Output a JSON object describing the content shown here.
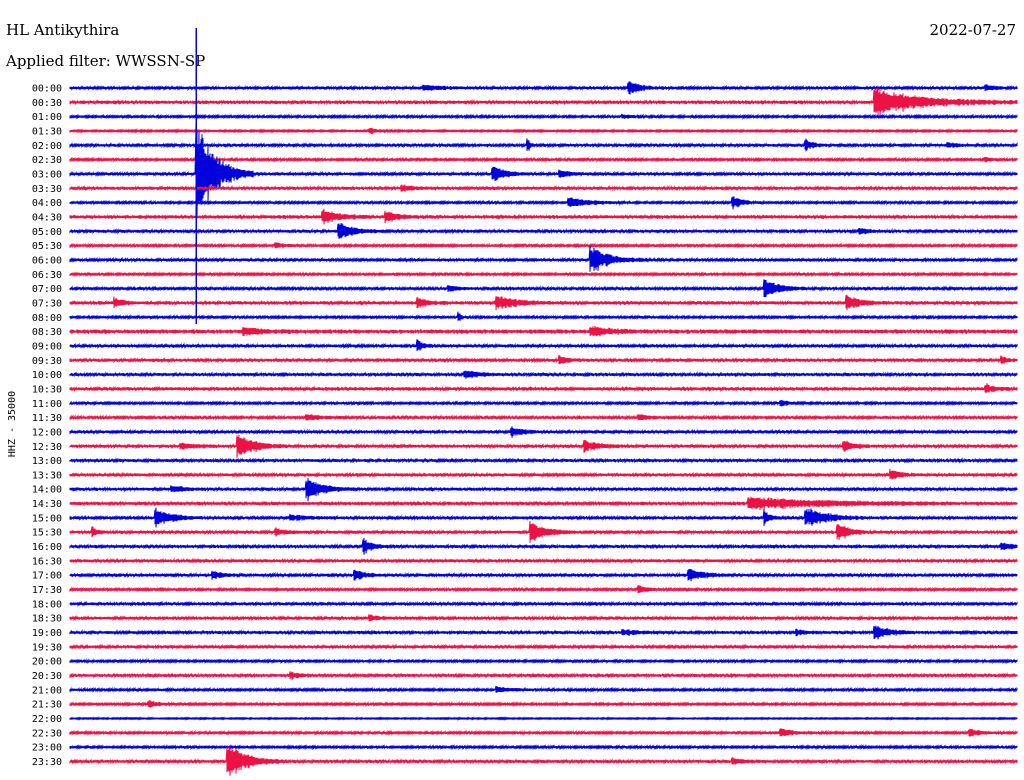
{
  "header": {
    "station": "HL Antikythira",
    "filter": "Applied filter: WWSSN-SP",
    "date": "2022-07-27"
  },
  "chart_data": {
    "type": "line",
    "title": "HL Antikythira",
    "subtitle": "Applied filter: WWSSN-SP",
    "ylabel": "HHZ - 35000",
    "xlabel": "",
    "rows": [
      "00:00",
      "00:30",
      "01:00",
      "01:30",
      "02:00",
      "02:30",
      "03:00",
      "03:30",
      "04:00",
      "04:30",
      "05:00",
      "05:30",
      "06:00",
      "06:30",
      "07:00",
      "07:30",
      "08:00",
      "08:30",
      "09:00",
      "09:30",
      "10:00",
      "10:30",
      "11:00",
      "11:30",
      "12:00",
      "12:30",
      "13:00",
      "13:30",
      "14:00",
      "14:30",
      "15:00",
      "15:30",
      "16:00",
      "16:30",
      "17:00",
      "17:30",
      "18:00",
      "18:30",
      "19:00",
      "19:30",
      "20:00",
      "20:30",
      "21:00",
      "21:30",
      "22:00",
      "22:30",
      "23:00",
      "23:30"
    ],
    "row_minutes": 30,
    "colors": [
      "#0000dd",
      "#ee1144"
    ],
    "quiet_noise": [
      1.2,
      1.5,
      1.0,
      0.8,
      1.2,
      1.0,
      1.2,
      1.3,
      1.0,
      1.5,
      1.3,
      1.0,
      1.2,
      1.0,
      1.2,
      1.5,
      1.0,
      1.8,
      1.3,
      1.3,
      1.3,
      1.5,
      1.0,
      1.2,
      1.3,
      1.3,
      1.3,
      1.3,
      1.3,
      1.5,
      1.3,
      1.3,
      1.3,
      1.3,
      1.3,
      1.0,
      1.3,
      1.3,
      1.3,
      1.3,
      1.0,
      1.3,
      1.0,
      1.0,
      0.6,
      1.0,
      1.0,
      1.3
    ],
    "events": [
      {
        "row": 0,
        "minute": 11.2,
        "amplitude": 3,
        "duration": 2.0
      },
      {
        "row": 0,
        "minute": 17.7,
        "amplitude": 7,
        "duration": 1.2
      },
      {
        "row": 0,
        "minute": 29.0,
        "amplitude": 3,
        "duration": 1.0
      },
      {
        "row": 1,
        "minute": 25.5,
        "amplitude": 14,
        "duration": 4.5
      },
      {
        "row": 2,
        "minute": 17.5,
        "amplitude": 2,
        "duration": 1.0
      },
      {
        "row": 3,
        "minute": 9.5,
        "amplitude": 3,
        "duration": 1.0
      },
      {
        "row": 4,
        "minute": 14.5,
        "amplitude": 6,
        "duration": 0.3
      },
      {
        "row": 4,
        "minute": 23.3,
        "amplitude": 6,
        "duration": 0.8
      },
      {
        "row": 4,
        "minute": 27.8,
        "amplitude": 3,
        "duration": 0.8
      },
      {
        "row": 5,
        "minute": 29.0,
        "amplitude": 3,
        "duration": 0.5
      },
      {
        "row": 6,
        "minute": 4.0,
        "amplitude": 55,
        "duration": 1.8
      },
      {
        "row": 6,
        "minute": 13.4,
        "amplitude": 8,
        "duration": 1.2
      },
      {
        "row": 6,
        "minute": 15.5,
        "amplitude": 4,
        "duration": 1.0
      },
      {
        "row": 7,
        "minute": 10.5,
        "amplitude": 3,
        "duration": 1.5
      },
      {
        "row": 8,
        "minute": 15.8,
        "amplitude": 5,
        "duration": 2.0
      },
      {
        "row": 8,
        "minute": 21.0,
        "amplitude": 6,
        "duration": 1.0
      },
      {
        "row": 9,
        "minute": 8.0,
        "amplitude": 8,
        "duration": 1.5
      },
      {
        "row": 9,
        "minute": 10.0,
        "amplitude": 5,
        "duration": 1.2
      },
      {
        "row": 10,
        "minute": 8.5,
        "amplitude": 9,
        "duration": 1.5
      },
      {
        "row": 10,
        "minute": 25.0,
        "amplitude": 3,
        "duration": 1.0
      },
      {
        "row": 11,
        "minute": 6.5,
        "amplitude": 3,
        "duration": 1.0
      },
      {
        "row": 12,
        "minute": 16.5,
        "amplitude": 14,
        "duration": 1.8
      },
      {
        "row": 14,
        "minute": 22.0,
        "amplitude": 9,
        "duration": 1.5
      },
      {
        "row": 14,
        "minute": 12.0,
        "amplitude": 3,
        "duration": 1.0
      },
      {
        "row": 15,
        "minute": 13.5,
        "amplitude": 7,
        "duration": 2.0
      },
      {
        "row": 15,
        "minute": 24.6,
        "amplitude": 8,
        "duration": 1.2
      },
      {
        "row": 15,
        "minute": 11.0,
        "amplitude": 5,
        "duration": 1.0
      },
      {
        "row": 15,
        "minute": 1.4,
        "amplitude": 5,
        "duration": 0.8
      },
      {
        "row": 16,
        "minute": 12.3,
        "amplitude": 5,
        "duration": 0.3
      },
      {
        "row": 17,
        "minute": 16.5,
        "amplitude": 5,
        "duration": 2.0
      },
      {
        "row": 17,
        "minute": 5.5,
        "amplitude": 4,
        "duration": 1.5
      },
      {
        "row": 18,
        "minute": 11.0,
        "amplitude": 6,
        "duration": 0.6
      },
      {
        "row": 19,
        "minute": 15.5,
        "amplitude": 4,
        "duration": 1.0
      },
      {
        "row": 19,
        "minute": 29.5,
        "amplitude": 5,
        "duration": 0.5
      },
      {
        "row": 20,
        "minute": 12.5,
        "amplitude": 4,
        "duration": 1.5
      },
      {
        "row": 21,
        "minute": 29.0,
        "amplitude": 5,
        "duration": 0.8
      },
      {
        "row": 22,
        "minute": 22.5,
        "amplitude": 3,
        "duration": 1.0
      },
      {
        "row": 23,
        "minute": 7.5,
        "amplitude": 3,
        "duration": 1.5
      },
      {
        "row": 23,
        "minute": 18.0,
        "amplitude": 3,
        "duration": 1.0
      },
      {
        "row": 24,
        "minute": 14.0,
        "amplitude": 5,
        "duration": 1.0
      },
      {
        "row": 25,
        "minute": 5.3,
        "amplitude": 13,
        "duration": 1.6
      },
      {
        "row": 25,
        "minute": 16.3,
        "amplitude": 6,
        "duration": 1.5
      },
      {
        "row": 25,
        "minute": 24.5,
        "amplitude": 6,
        "duration": 1.0
      },
      {
        "row": 25,
        "minute": 3.5,
        "amplitude": 3,
        "duration": 1.5
      },
      {
        "row": 27,
        "minute": 26.0,
        "amplitude": 5,
        "duration": 1.0
      },
      {
        "row": 28,
        "minute": 7.5,
        "amplitude": 12,
        "duration": 1.5
      },
      {
        "row": 28,
        "minute": 3.2,
        "amplitude": 4,
        "duration": 1.2
      },
      {
        "row": 29,
        "minute": 21.5,
        "amplitude": 6,
        "duration": 7.5
      },
      {
        "row": 30,
        "minute": 2.7,
        "amplitude": 10,
        "duration": 1.5
      },
      {
        "row": 30,
        "minute": 22.0,
        "amplitude": 8,
        "duration": 0.5
      },
      {
        "row": 30,
        "minute": 23.3,
        "amplitude": 11,
        "duration": 2.0
      },
      {
        "row": 30,
        "minute": 7.0,
        "amplitude": 3,
        "duration": 1.5
      },
      {
        "row": 31,
        "minute": 14.6,
        "amplitude": 10,
        "duration": 1.5
      },
      {
        "row": 31,
        "minute": 24.3,
        "amplitude": 12,
        "duration": 1.0
      },
      {
        "row": 31,
        "minute": 6.5,
        "amplitude": 4,
        "duration": 1.0
      },
      {
        "row": 31,
        "minute": 0.7,
        "amplitude": 5,
        "duration": 0.5
      },
      {
        "row": 32,
        "minute": 9.3,
        "amplitude": 8,
        "duration": 0.8
      },
      {
        "row": 32,
        "minute": 29.5,
        "amplitude": 4,
        "duration": 1.0
      },
      {
        "row": 34,
        "minute": 9.0,
        "amplitude": 6,
        "duration": 1.0
      },
      {
        "row": 34,
        "minute": 19.6,
        "amplitude": 6,
        "duration": 1.5
      },
      {
        "row": 34,
        "minute": 4.5,
        "amplitude": 4,
        "duration": 1.0
      },
      {
        "row": 35,
        "minute": 18.0,
        "amplitude": 4,
        "duration": 1.0
      },
      {
        "row": 37,
        "minute": 9.5,
        "amplitude": 3,
        "duration": 1.0
      },
      {
        "row": 38,
        "minute": 25.5,
        "amplitude": 7,
        "duration": 1.5
      },
      {
        "row": 38,
        "minute": 17.5,
        "amplitude": 3,
        "duration": 1.5
      },
      {
        "row": 38,
        "minute": 23.0,
        "amplitude": 3,
        "duration": 1.0
      },
      {
        "row": 41,
        "minute": 7.0,
        "amplitude": 3,
        "duration": 1.0
      },
      {
        "row": 42,
        "minute": 13.5,
        "amplitude": 3,
        "duration": 1.5
      },
      {
        "row": 43,
        "minute": 2.5,
        "amplitude": 4,
        "duration": 1.0
      },
      {
        "row": 45,
        "minute": 22.5,
        "amplitude": 4,
        "duration": 1.5
      },
      {
        "row": 45,
        "minute": 28.5,
        "amplitude": 4,
        "duration": 1.0
      },
      {
        "row": 47,
        "minute": 5.0,
        "amplitude": 18,
        "duration": 1.8
      },
      {
        "row": 47,
        "minute": 21.0,
        "amplitude": 3,
        "duration": 1.0
      }
    ],
    "grid": false,
    "legend": "none"
  }
}
